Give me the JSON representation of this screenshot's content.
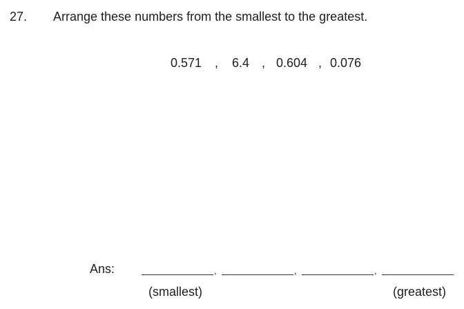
{
  "question": {
    "number": "27.",
    "text": "Arrange these numbers from the smallest to the greatest."
  },
  "numbers": {
    "items": [
      "0.571",
      "6.4",
      "0.604",
      "0.076"
    ],
    "separator": ","
  },
  "answer": {
    "label": "Ans:",
    "separator": ",",
    "left_note": "(smallest)",
    "right_note": "(greatest)"
  }
}
